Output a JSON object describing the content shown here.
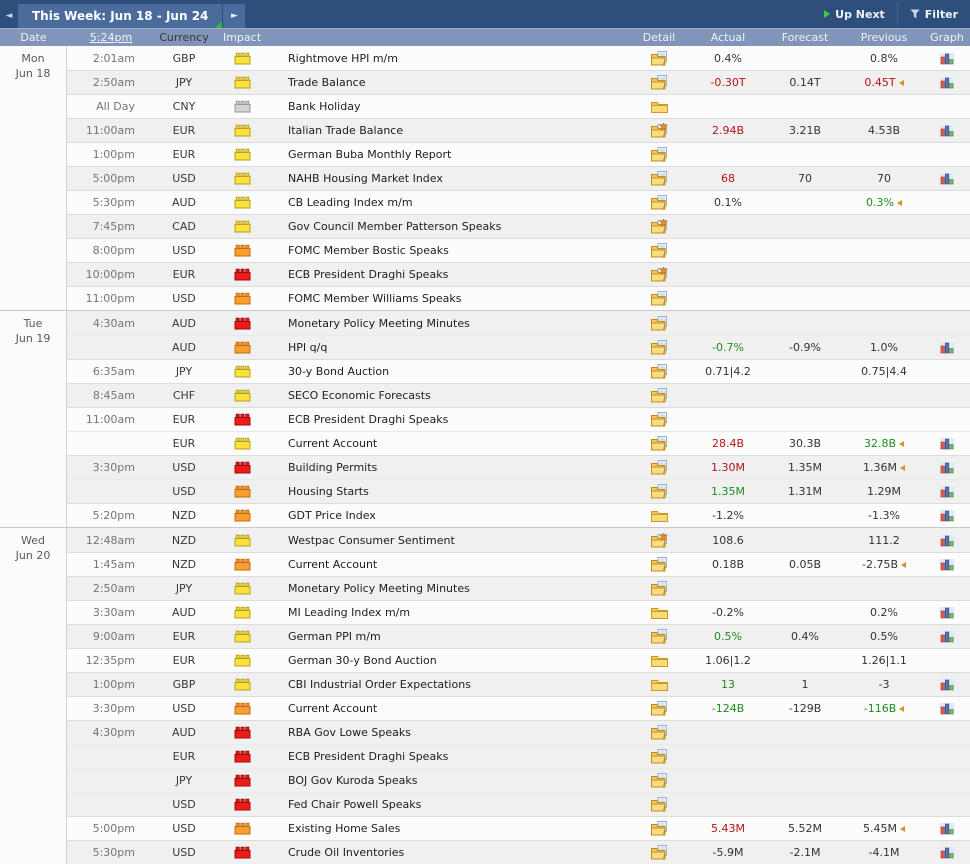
{
  "toolbar": {
    "title": "This Week: Jun 18 - Jun 24",
    "prev_arrow": "◄",
    "next_arrow": "►",
    "up_next_label": "Up Next",
    "filter_label": "Filter"
  },
  "header": {
    "date": "Date",
    "time_link": "5:24pm",
    "currency": "Currency",
    "impact": "Impact",
    "detail": "Detail",
    "actual": "Actual",
    "forecast": "Forecast",
    "previous": "Previous",
    "graph": "Graph"
  },
  "colors": {
    "topbar": "#2e4e7c",
    "week_tab": "#4a6c9d",
    "header_row": "#8095b9",
    "impact_yellow": "#fbe13c",
    "impact_orange": "#fb9e2f",
    "impact_red": "#ec1c1c",
    "impact_gray": "#d3d3d3",
    "value_red": "#b41414",
    "value_green": "#1f8c1f",
    "revision_marker": "#d79030"
  },
  "days": [
    {
      "day": "Mon",
      "date": "Jun 18",
      "events": [
        {
          "time": "2:01am",
          "currency": "GBP",
          "impact": "yellow",
          "title": "Rightmove HPI m/m",
          "detail": "doc",
          "actual": "0.4%",
          "actual_color": "black",
          "forecast": "",
          "previous": "0.8%",
          "previous_color": "black",
          "revised": false,
          "graph": true,
          "shade": false,
          "new_block": true
        },
        {
          "time": "2:50am",
          "currency": "JPY",
          "impact": "yellow",
          "title": "Trade Balance",
          "detail": "doc",
          "actual": "-0.30T",
          "actual_color": "red",
          "forecast": "0.14T",
          "previous": "0.45T",
          "previous_color": "red",
          "revised": true,
          "graph": true,
          "shade": true,
          "new_block": true
        },
        {
          "time": "All Day",
          "currency": "CNY",
          "impact": "gray",
          "title": "Bank Holiday",
          "detail": "folder",
          "actual": "",
          "actual_color": "black",
          "forecast": "",
          "previous": "",
          "previous_color": "black",
          "revised": false,
          "graph": false,
          "shade": false,
          "new_block": true
        },
        {
          "time": "11:00am",
          "currency": "EUR",
          "impact": "yellow",
          "title": "Italian Trade Balance",
          "detail": "docstar",
          "actual": "2.94B",
          "actual_color": "red",
          "forecast": "3.21B",
          "previous": "4.53B",
          "previous_color": "black",
          "revised": false,
          "graph": true,
          "shade": true,
          "new_block": true
        },
        {
          "time": "1:00pm",
          "currency": "EUR",
          "impact": "yellow",
          "title": "German Buba Monthly Report",
          "detail": "doc",
          "actual": "",
          "actual_color": "black",
          "forecast": "",
          "previous": "",
          "previous_color": "black",
          "revised": false,
          "graph": false,
          "shade": false,
          "new_block": true
        },
        {
          "time": "5:00pm",
          "currency": "USD",
          "impact": "yellow",
          "title": "NAHB Housing Market Index",
          "detail": "doc",
          "actual": "68",
          "actual_color": "red",
          "forecast": "70",
          "previous": "70",
          "previous_color": "black",
          "revised": false,
          "graph": true,
          "shade": true,
          "new_block": true
        },
        {
          "time": "5:30pm",
          "currency": "AUD",
          "impact": "yellow",
          "title": "CB Leading Index m/m",
          "detail": "doc",
          "actual": "0.1%",
          "actual_color": "black",
          "forecast": "",
          "previous": "0.3%",
          "previous_color": "green",
          "revised": true,
          "graph": false,
          "shade": false,
          "new_block": true
        },
        {
          "time": "7:45pm",
          "currency": "CAD",
          "impact": "yellow",
          "title": "Gov Council Member Patterson Speaks",
          "detail": "docstar",
          "actual": "",
          "actual_color": "black",
          "forecast": "",
          "previous": "",
          "previous_color": "black",
          "revised": false,
          "graph": false,
          "shade": true,
          "new_block": true
        },
        {
          "time": "8:00pm",
          "currency": "USD",
          "impact": "orange",
          "title": "FOMC Member Bostic Speaks",
          "detail": "doc",
          "actual": "",
          "actual_color": "black",
          "forecast": "",
          "previous": "",
          "previous_color": "black",
          "revised": false,
          "graph": false,
          "shade": false,
          "new_block": true
        },
        {
          "time": "10:00pm",
          "currency": "EUR",
          "impact": "red",
          "title": "ECB President Draghi Speaks",
          "detail": "docstar",
          "actual": "",
          "actual_color": "black",
          "forecast": "",
          "previous": "",
          "previous_color": "black",
          "revised": false,
          "graph": false,
          "shade": true,
          "new_block": true
        },
        {
          "time": "11:00pm",
          "currency": "USD",
          "impact": "orange",
          "title": "FOMC Member Williams Speaks",
          "detail": "doc",
          "actual": "",
          "actual_color": "black",
          "forecast": "",
          "previous": "",
          "previous_color": "black",
          "revised": false,
          "graph": false,
          "shade": false,
          "new_block": true
        }
      ]
    },
    {
      "day": "Tue",
      "date": "Jun 19",
      "events": [
        {
          "time": "4:30am",
          "currency": "AUD",
          "impact": "red",
          "title": "Monetary Policy Meeting Minutes",
          "detail": "doc",
          "actual": "",
          "actual_color": "black",
          "forecast": "",
          "previous": "",
          "previous_color": "black",
          "revised": false,
          "graph": false,
          "shade": true,
          "new_block": true
        },
        {
          "time": "",
          "currency": "AUD",
          "impact": "orange",
          "title": "HPI q/q",
          "detail": "doc",
          "actual": "-0.7%",
          "actual_color": "green",
          "forecast": "-0.9%",
          "previous": "1.0%",
          "previous_color": "black",
          "revised": false,
          "graph": true,
          "shade": true,
          "new_block": false
        },
        {
          "time": "6:35am",
          "currency": "JPY",
          "impact": "yellow",
          "title": "30-y Bond Auction",
          "detail": "doc",
          "actual": "0.71|4.2",
          "actual_color": "black",
          "forecast": "",
          "previous": "0.75|4.4",
          "previous_color": "black",
          "revised": false,
          "graph": false,
          "shade": false,
          "new_block": true
        },
        {
          "time": "8:45am",
          "currency": "CHF",
          "impact": "yellow",
          "title": "SECO Economic Forecasts",
          "detail": "doc",
          "actual": "",
          "actual_color": "black",
          "forecast": "",
          "previous": "",
          "previous_color": "black",
          "revised": false,
          "graph": false,
          "shade": true,
          "new_block": true
        },
        {
          "time": "11:00am",
          "currency": "EUR",
          "impact": "red",
          "title": "ECB President Draghi Speaks",
          "detail": "doc",
          "actual": "",
          "actual_color": "black",
          "forecast": "",
          "previous": "",
          "previous_color": "black",
          "revised": false,
          "graph": false,
          "shade": false,
          "new_block": true
        },
        {
          "time": "",
          "currency": "EUR",
          "impact": "yellow",
          "title": "Current Account",
          "detail": "doc",
          "actual": "28.4B",
          "actual_color": "red",
          "forecast": "30.3B",
          "previous": "32.8B",
          "previous_color": "green",
          "revised": true,
          "graph": true,
          "shade": false,
          "new_block": false
        },
        {
          "time": "3:30pm",
          "currency": "USD",
          "impact": "red",
          "title": "Building Permits",
          "detail": "doc",
          "actual": "1.30M",
          "actual_color": "red",
          "forecast": "1.35M",
          "previous": "1.36M",
          "previous_color": "black",
          "revised": true,
          "graph": true,
          "shade": true,
          "new_block": true
        },
        {
          "time": "",
          "currency": "USD",
          "impact": "orange",
          "title": "Housing Starts",
          "detail": "doc",
          "actual": "1.35M",
          "actual_color": "green",
          "forecast": "1.31M",
          "previous": "1.29M",
          "previous_color": "black",
          "revised": false,
          "graph": true,
          "shade": true,
          "new_block": false
        },
        {
          "time": "5:20pm",
          "currency": "NZD",
          "impact": "orange",
          "title": "GDT Price Index",
          "detail": "folder",
          "actual": "-1.2%",
          "actual_color": "black",
          "forecast": "",
          "previous": "-1.3%",
          "previous_color": "black",
          "revised": false,
          "graph": true,
          "shade": false,
          "new_block": true
        }
      ]
    },
    {
      "day": "Wed",
      "date": "Jun 20",
      "events": [
        {
          "time": "12:48am",
          "currency": "NZD",
          "impact": "yellow",
          "title": "Westpac Consumer Sentiment",
          "detail": "docstar",
          "actual": "108.6",
          "actual_color": "black",
          "forecast": "",
          "previous": "111.2",
          "previous_color": "black",
          "revised": false,
          "graph": true,
          "shade": true,
          "new_block": true
        },
        {
          "time": "1:45am",
          "currency": "NZD",
          "impact": "orange",
          "title": "Current Account",
          "detail": "doc",
          "actual": "0.18B",
          "actual_color": "black",
          "forecast": "0.05B",
          "previous": "-2.75B",
          "previous_color": "black",
          "revised": true,
          "graph": true,
          "shade": false,
          "new_block": true
        },
        {
          "time": "2:50am",
          "currency": "JPY",
          "impact": "yellow",
          "title": "Monetary Policy Meeting Minutes",
          "detail": "doc",
          "actual": "",
          "actual_color": "black",
          "forecast": "",
          "previous": "",
          "previous_color": "black",
          "revised": false,
          "graph": false,
          "shade": true,
          "new_block": true
        },
        {
          "time": "3:30am",
          "currency": "AUD",
          "impact": "yellow",
          "title": "MI Leading Index m/m",
          "detail": "folder",
          "actual": "-0.2%",
          "actual_color": "black",
          "forecast": "",
          "previous": "0.2%",
          "previous_color": "black",
          "revised": false,
          "graph": true,
          "shade": false,
          "new_block": true
        },
        {
          "time": "9:00am",
          "currency": "EUR",
          "impact": "yellow",
          "title": "German PPI m/m",
          "detail": "doc",
          "actual": "0.5%",
          "actual_color": "green",
          "forecast": "0.4%",
          "previous": "0.5%",
          "previous_color": "black",
          "revised": false,
          "graph": true,
          "shade": true,
          "new_block": true
        },
        {
          "time": "12:35pm",
          "currency": "EUR",
          "impact": "yellow",
          "title": "German 30-y Bond Auction",
          "detail": "folder",
          "actual": "1.06|1.2",
          "actual_color": "black",
          "forecast": "",
          "previous": "1.26|1.1",
          "previous_color": "black",
          "revised": false,
          "graph": false,
          "shade": false,
          "new_block": true
        },
        {
          "time": "1:00pm",
          "currency": "GBP",
          "impact": "yellow",
          "title": "CBI Industrial Order Expectations",
          "detail": "folder",
          "actual": "13",
          "actual_color": "green",
          "forecast": "1",
          "previous": "-3",
          "previous_color": "black",
          "revised": false,
          "graph": true,
          "shade": true,
          "new_block": true
        },
        {
          "time": "3:30pm",
          "currency": "USD",
          "impact": "orange",
          "title": "Current Account",
          "detail": "doc",
          "actual": "-124B",
          "actual_color": "green",
          "forecast": "-129B",
          "previous": "-116B",
          "previous_color": "green",
          "revised": true,
          "graph": true,
          "shade": false,
          "new_block": true
        },
        {
          "time": "4:30pm",
          "currency": "AUD",
          "impact": "red",
          "title": "RBA Gov Lowe Speaks",
          "detail": "doc",
          "actual": "",
          "actual_color": "black",
          "forecast": "",
          "previous": "",
          "previous_color": "black",
          "revised": false,
          "graph": false,
          "shade": true,
          "new_block": true
        },
        {
          "time": "",
          "currency": "EUR",
          "impact": "red",
          "title": "ECB President Draghi Speaks",
          "detail": "doc",
          "actual": "",
          "actual_color": "black",
          "forecast": "",
          "previous": "",
          "previous_color": "black",
          "revised": false,
          "graph": false,
          "shade": true,
          "new_block": false
        },
        {
          "time": "",
          "currency": "JPY",
          "impact": "red",
          "title": "BOJ Gov Kuroda Speaks",
          "detail": "doc",
          "actual": "",
          "actual_color": "black",
          "forecast": "",
          "previous": "",
          "previous_color": "black",
          "revised": false,
          "graph": false,
          "shade": true,
          "new_block": false
        },
        {
          "time": "",
          "currency": "USD",
          "impact": "red",
          "title": "Fed Chair Powell Speaks",
          "detail": "doc",
          "actual": "",
          "actual_color": "black",
          "forecast": "",
          "previous": "",
          "previous_color": "black",
          "revised": false,
          "graph": false,
          "shade": true,
          "new_block": false
        },
        {
          "time": "5:00pm",
          "currency": "USD",
          "impact": "orange",
          "title": "Existing Home Sales",
          "detail": "doc",
          "actual": "5.43M",
          "actual_color": "red",
          "forecast": "5.52M",
          "previous": "5.45M",
          "previous_color": "black",
          "revised": true,
          "graph": true,
          "shade": false,
          "new_block": true
        },
        {
          "time": "5:30pm",
          "currency": "USD",
          "impact": "red",
          "title": "Crude Oil Inventories",
          "detail": "doc",
          "actual": "-5.9M",
          "actual_color": "black",
          "forecast": "-2.1M",
          "previous": "-4.1M",
          "previous_color": "black",
          "revised": false,
          "graph": true,
          "shade": true,
          "new_block": true
        }
      ]
    }
  ]
}
